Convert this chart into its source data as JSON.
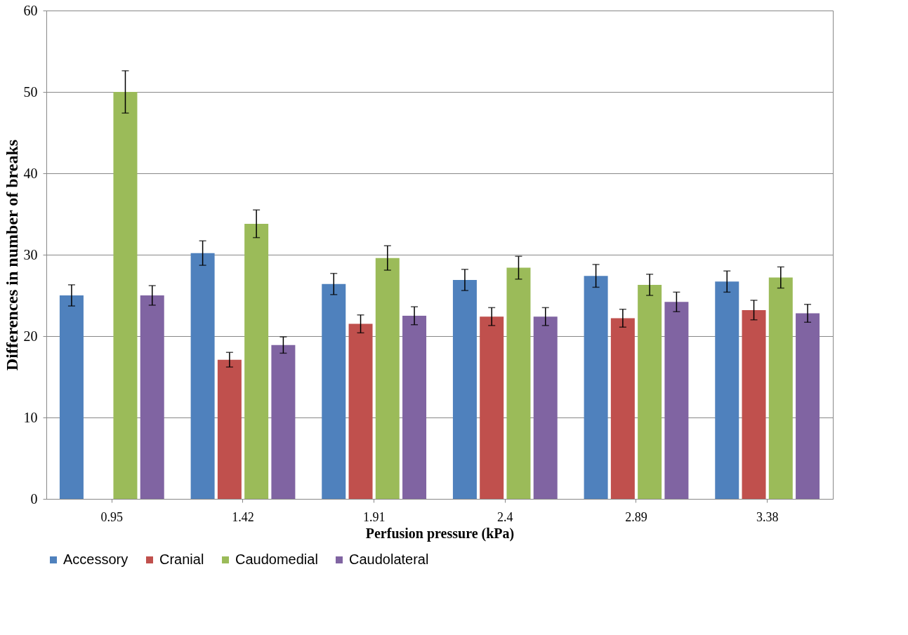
{
  "chart_data": {
    "type": "bar",
    "xlabel": "Perfusion pressure (kPa)",
    "ylabel": "Differences in number of breaks",
    "categories": [
      "0.95",
      "1.42",
      "1.91",
      "2.4",
      "2.89",
      "3.38"
    ],
    "ylim": [
      0,
      60
    ],
    "yticks": [
      0,
      10,
      20,
      30,
      40,
      50,
      60
    ],
    "grid": "y",
    "legend": "bottom",
    "series": [
      {
        "name": "Accessory",
        "color": "#4f81bd",
        "values": [
          25.0,
          30.2,
          26.4,
          26.9,
          27.4,
          26.7
        ],
        "errors": [
          1.3,
          1.5,
          1.3,
          1.3,
          1.4,
          1.3
        ]
      },
      {
        "name": "Cranial",
        "color": "#c0504d",
        "values": [
          0,
          17.1,
          21.5,
          22.4,
          22.2,
          23.2
        ],
        "errors": [
          null,
          0.9,
          1.1,
          1.1,
          1.1,
          1.2
        ]
      },
      {
        "name": "Caudomedial",
        "color": "#9bbb59",
        "values": [
          50.0,
          33.8,
          29.6,
          28.4,
          26.3,
          27.2
        ],
        "errors": [
          2.6,
          1.7,
          1.5,
          1.4,
          1.3,
          1.3
        ]
      },
      {
        "name": "Caudolateral",
        "color": "#8064a2",
        "values": [
          25.0,
          18.9,
          22.5,
          22.4,
          24.2,
          22.8
        ],
        "errors": [
          1.2,
          1.0,
          1.1,
          1.1,
          1.2,
          1.1
        ]
      }
    ]
  }
}
